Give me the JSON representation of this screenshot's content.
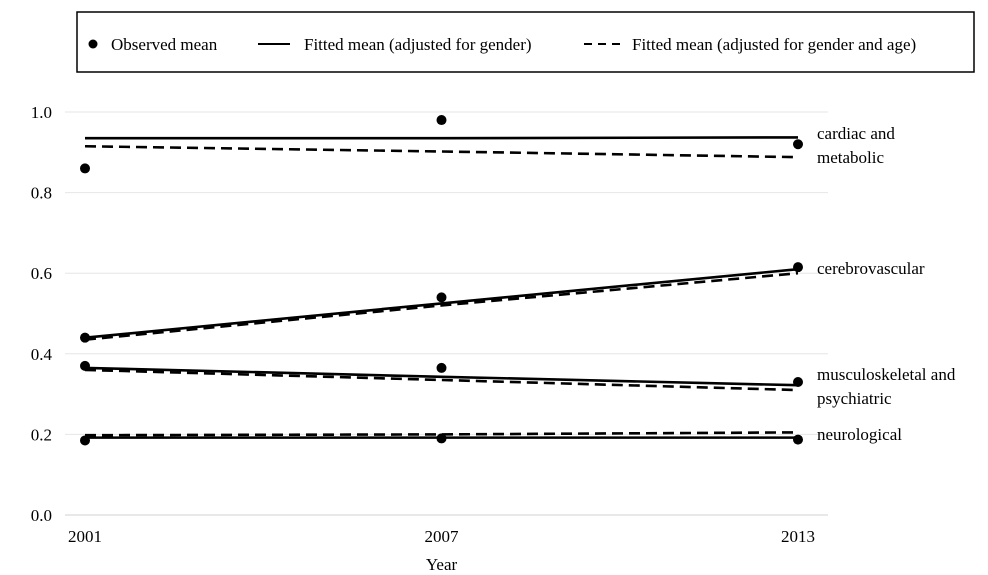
{
  "chart_data": {
    "type": "line",
    "xlabel": "Year",
    "ylabel": "",
    "ylim": [
      0.0,
      1.0
    ],
    "yticks": [
      "0.0",
      "0.2",
      "0.4",
      "0.6",
      "0.8",
      "1.0"
    ],
    "x": [
      "2001",
      "2007",
      "2013"
    ],
    "grid": true,
    "legend_position": "top",
    "legend": [
      {
        "label": "Observed mean",
        "marker": "point"
      },
      {
        "label": "Fitted mean (adjusted for gender)",
        "marker": "solid"
      },
      {
        "label": "Fitted mean (adjusted for gender and age)",
        "marker": "dashed"
      }
    ],
    "groups": [
      {
        "label_lines": [
          "cardiac and",
          "metabolic"
        ],
        "observed": [
          0.86,
          0.98,
          0.92
        ],
        "fitted_gender": [
          0.935,
          0.935,
          0.937
        ],
        "fitted_gender_age": [
          0.915,
          0.902,
          0.888
        ]
      },
      {
        "label_lines": [
          "cerebrovascular"
        ],
        "observed": [
          0.44,
          0.54,
          0.615
        ],
        "fitted_gender": [
          0.44,
          0.525,
          0.61
        ],
        "fitted_gender_age": [
          0.435,
          0.52,
          0.6
        ]
      },
      {
        "label_lines": [
          "musculoskeletal and",
          "psychiatric"
        ],
        "observed": [
          0.37,
          0.365,
          0.33
        ],
        "fitted_gender": [
          0.365,
          0.343,
          0.322
        ],
        "fitted_gender_age": [
          0.36,
          0.335,
          0.31
        ]
      },
      {
        "label_lines": [
          "neurological"
        ],
        "observed": [
          0.185,
          0.19,
          0.187
        ],
        "fitted_gender": [
          0.192,
          0.192,
          0.192
        ],
        "fitted_gender_age": [
          0.198,
          0.2,
          0.205
        ]
      }
    ]
  }
}
